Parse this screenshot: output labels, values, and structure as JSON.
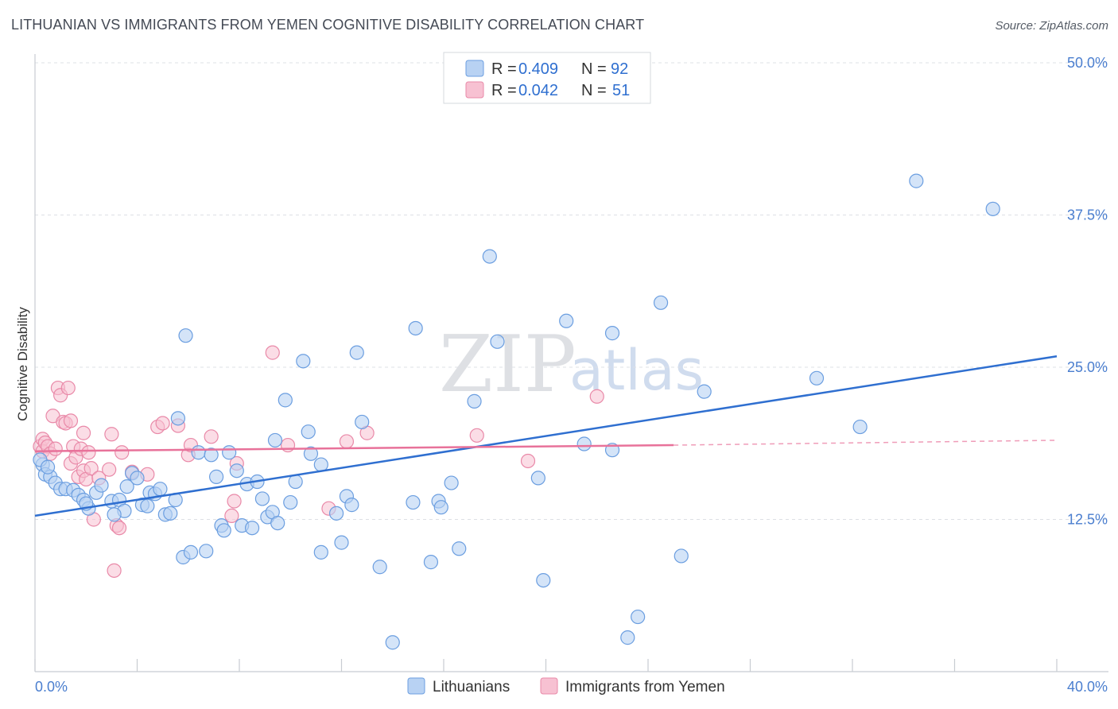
{
  "header": {
    "title": "LITHUANIAN VS IMMIGRANTS FROM YEMEN COGNITIVE DISABILITY CORRELATION CHART",
    "source": "Source: ZipAtlas.com"
  },
  "watermark": {
    "zip": "ZIP",
    "atlas": "atlas"
  },
  "colors": {
    "blue_fill": "#b8d2f3",
    "blue_stroke": "#6b9ee0",
    "blue_line": "#2f6fd0",
    "pink_fill": "#f7c1d2",
    "pink_stroke": "#e989a8",
    "pink_line": "#e8729a",
    "grid": "#dde0e5",
    "axis_text": "#4a7ecf"
  },
  "legend": {
    "rows": [
      {
        "r_label": "R = ",
        "r_value": "0.409",
        "n_label": "N = ",
        "n_value": "92"
      },
      {
        "r_label": "R = ",
        "r_value": "0.042",
        "n_label": "N = ",
        "n_value": "51"
      }
    ]
  },
  "bottom_legend": {
    "items": [
      "Lithuanians",
      "Immigrants from Yemen"
    ]
  },
  "chart_data": {
    "type": "scatter",
    "title": "LITHUANIAN VS IMMIGRANTS FROM YEMEN COGNITIVE DISABILITY CORRELATION CHART",
    "xlabel": "",
    "ylabel": "Cognitive Disability",
    "xlim": [
      0,
      40
    ],
    "ylim": [
      0,
      50
    ],
    "x_tick_labels": [
      "0.0%",
      "40.0%"
    ],
    "y_ticks": [
      12.5,
      25.0,
      37.5,
      50.0
    ],
    "y_tick_labels": [
      "12.5%",
      "25.0%",
      "37.5%",
      "50.0%"
    ],
    "grid": true,
    "series": [
      {
        "name": "Lithuanians",
        "R": 0.409,
        "N": 92,
        "trend": {
          "x": [
            0,
            40
          ],
          "y": [
            12.8,
            25.9
          ]
        },
        "points": [
          [
            0.3,
            17.0
          ],
          [
            0.4,
            16.2
          ],
          [
            0.6,
            16.0
          ],
          [
            0.8,
            15.5
          ],
          [
            1.0,
            15.0
          ],
          [
            1.2,
            15.0
          ],
          [
            1.5,
            14.9
          ],
          [
            1.7,
            14.5
          ],
          [
            1.9,
            14.1
          ],
          [
            2.1,
            13.4
          ],
          [
            2.4,
            14.7
          ],
          [
            2.6,
            15.3
          ],
          [
            3.0,
            14.0
          ],
          [
            3.3,
            14.1
          ],
          [
            3.5,
            13.2
          ],
          [
            3.6,
            15.2
          ],
          [
            3.8,
            16.3
          ],
          [
            4.0,
            15.9
          ],
          [
            4.2,
            13.7
          ],
          [
            4.4,
            13.6
          ],
          [
            4.5,
            14.7
          ],
          [
            4.7,
            14.6
          ],
          [
            4.9,
            15.0
          ],
          [
            5.1,
            12.9
          ],
          [
            5.3,
            13.0
          ],
          [
            5.5,
            14.1
          ],
          [
            5.8,
            9.4
          ],
          [
            5.6,
            20.8
          ],
          [
            5.9,
            27.6
          ],
          [
            6.1,
            9.8
          ],
          [
            6.4,
            18.0
          ],
          [
            6.7,
            9.9
          ],
          [
            6.9,
            17.8
          ],
          [
            7.1,
            16.0
          ],
          [
            7.3,
            12.0
          ],
          [
            7.4,
            11.6
          ],
          [
            7.6,
            18.0
          ],
          [
            7.9,
            16.5
          ],
          [
            8.1,
            12.0
          ],
          [
            8.3,
            15.4
          ],
          [
            8.5,
            11.8
          ],
          [
            8.7,
            15.6
          ],
          [
            8.9,
            14.2
          ],
          [
            9.1,
            12.7
          ],
          [
            9.3,
            13.1
          ],
          [
            9.4,
            19.0
          ],
          [
            9.5,
            12.2
          ],
          [
            9.8,
            22.3
          ],
          [
            10.0,
            13.9
          ],
          [
            10.2,
            15.6
          ],
          [
            10.5,
            25.5
          ],
          [
            10.7,
            19.7
          ],
          [
            10.8,
            17.9
          ],
          [
            11.2,
            17.0
          ],
          [
            11.2,
            9.8
          ],
          [
            11.8,
            13.0
          ],
          [
            12.0,
            10.6
          ],
          [
            12.2,
            14.4
          ],
          [
            12.4,
            13.7
          ],
          [
            12.6,
            26.2
          ],
          [
            12.8,
            20.5
          ],
          [
            13.5,
            8.6
          ],
          [
            14.0,
            2.4
          ],
          [
            14.8,
            13.9
          ],
          [
            14.9,
            28.2
          ],
          [
            15.5,
            9.0
          ],
          [
            15.8,
            14.0
          ],
          [
            15.9,
            13.5
          ],
          [
            16.3,
            15.5
          ],
          [
            16.6,
            10.1
          ],
          [
            17.2,
            22.2
          ],
          [
            17.8,
            34.1
          ],
          [
            18.1,
            27.1
          ],
          [
            19.7,
            15.9
          ],
          [
            19.9,
            7.5
          ],
          [
            20.8,
            28.8
          ],
          [
            21.5,
            18.7
          ],
          [
            22.6,
            18.2
          ],
          [
            22.6,
            27.8
          ],
          [
            23.2,
            2.8
          ],
          [
            23.6,
            4.5
          ],
          [
            24.5,
            30.3
          ],
          [
            25.3,
            9.5
          ],
          [
            26.2,
            23.0
          ],
          [
            30.6,
            24.1
          ],
          [
            32.3,
            20.1
          ],
          [
            34.5,
            40.3
          ],
          [
            37.5,
            38.0
          ],
          [
            0.2,
            17.4
          ],
          [
            0.5,
            16.8
          ],
          [
            2.0,
            13.8
          ],
          [
            3.1,
            12.9
          ]
        ]
      },
      {
        "name": "Immigrants from Yemen",
        "R": 0.042,
        "N": 51,
        "trend": {
          "x": [
            0,
            25
          ],
          "y": [
            18.1,
            18.6
          ]
        },
        "trend_dashed": {
          "x": [
            25,
            40
          ],
          "y": [
            18.6,
            19.0
          ]
        },
        "points": [
          [
            0.2,
            18.5
          ],
          [
            0.3,
            19.1
          ],
          [
            0.3,
            18.1
          ],
          [
            0.4,
            18.8
          ],
          [
            0.5,
            18.5
          ],
          [
            0.6,
            17.9
          ],
          [
            0.7,
            21.0
          ],
          [
            0.8,
            18.3
          ],
          [
            0.9,
            23.3
          ],
          [
            1.0,
            22.7
          ],
          [
            1.1,
            20.5
          ],
          [
            1.2,
            20.4
          ],
          [
            1.3,
            23.3
          ],
          [
            1.4,
            20.6
          ],
          [
            1.4,
            17.1
          ],
          [
            1.5,
            18.5
          ],
          [
            1.6,
            17.6
          ],
          [
            1.7,
            16.0
          ],
          [
            1.8,
            18.3
          ],
          [
            1.9,
            16.5
          ],
          [
            1.9,
            19.6
          ],
          [
            2.0,
            15.8
          ],
          [
            2.1,
            18.0
          ],
          [
            2.2,
            16.7
          ],
          [
            2.3,
            12.5
          ],
          [
            2.5,
            15.9
          ],
          [
            2.9,
            16.6
          ],
          [
            3.0,
            19.5
          ],
          [
            3.1,
            8.3
          ],
          [
            3.2,
            12.0
          ],
          [
            3.3,
            11.8
          ],
          [
            3.4,
            18.0
          ],
          [
            3.8,
            16.4
          ],
          [
            4.4,
            16.2
          ],
          [
            4.8,
            20.1
          ],
          [
            5.0,
            20.4
          ],
          [
            5.6,
            20.2
          ],
          [
            6.0,
            17.8
          ],
          [
            6.1,
            18.6
          ],
          [
            6.9,
            19.3
          ],
          [
            7.7,
            12.8
          ],
          [
            7.8,
            14.0
          ],
          [
            7.9,
            17.1
          ],
          [
            9.3,
            26.2
          ],
          [
            9.9,
            18.6
          ],
          [
            11.5,
            13.4
          ],
          [
            12.2,
            18.9
          ],
          [
            13.0,
            19.6
          ],
          [
            17.3,
            19.4
          ],
          [
            19.3,
            17.3
          ],
          [
            22.0,
            22.6
          ]
        ]
      }
    ]
  }
}
